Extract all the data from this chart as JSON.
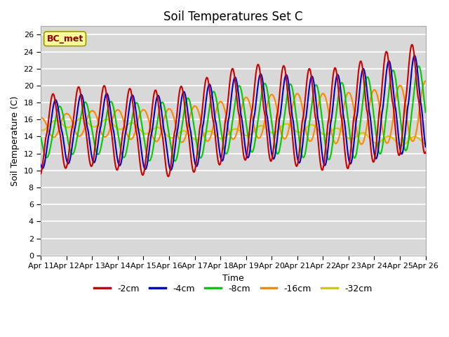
{
  "title": "Soil Temperatures Set C",
  "xlabel": "Time",
  "ylabel": "Soil Temperature (C)",
  "ylim": [
    0,
    27
  ],
  "yticks": [
    0,
    2,
    4,
    6,
    8,
    10,
    12,
    14,
    16,
    18,
    20,
    22,
    24,
    26
  ],
  "xtick_labels": [
    "Apr 11",
    "Apr 12",
    "Apr 13",
    "Apr 14",
    "Apr 15",
    "Apr 16",
    "Apr 17",
    "Apr 18",
    "Apr 19",
    "Apr 20",
    "Apr 21",
    "Apr 22",
    "Apr 23",
    "Apr 24",
    "Apr 25",
    "Apr 26"
  ],
  "colors": {
    "-2cm": "#cc0000",
    "-4cm": "#0000cc",
    "-8cm": "#00cc00",
    "-16cm": "#ff8800",
    "-32cm": "#cccc00"
  },
  "legend_label": "BC_met",
  "bg_color": "#ffffff",
  "plot_bg_color": "#d8d8d8",
  "grid_color": "#ffffff",
  "line_width": 1.5,
  "figsize": [
    6.4,
    4.8
  ],
  "dpi": 100
}
